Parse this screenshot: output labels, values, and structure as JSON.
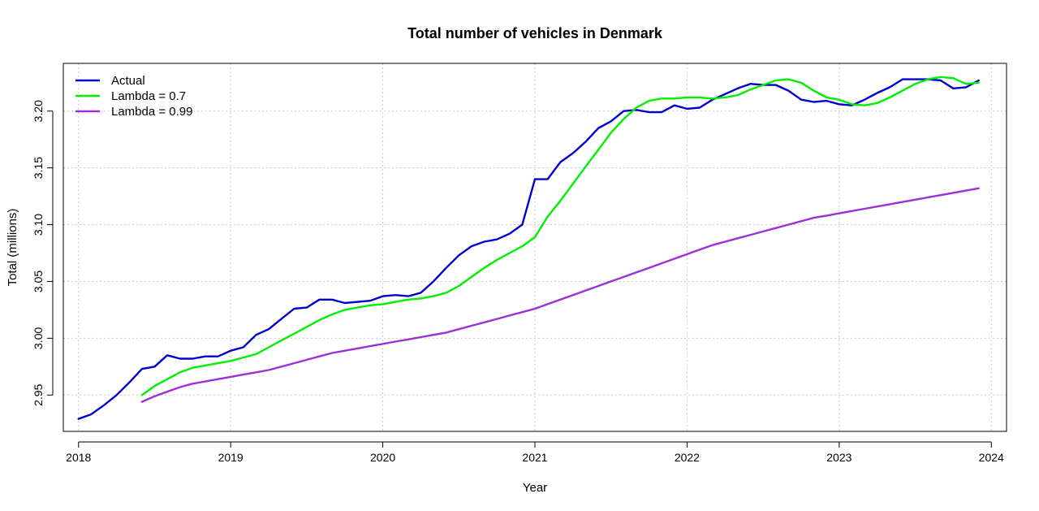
{
  "chart_data": {
    "type": "line",
    "title": "Total number of vehicles in Denmark",
    "xlabel": "Year",
    "ylabel": "Total (millions)",
    "xlim": [
      2017.9,
      2024.1
    ],
    "ylim": [
      2.918,
      3.242
    ],
    "x_ticks": [
      2018,
      2019,
      2020,
      2021,
      2022,
      2023,
      2024
    ],
    "x_tick_labels": [
      "2018",
      "2019",
      "2020",
      "2021",
      "2022",
      "2023",
      "2024"
    ],
    "y_ticks": [
      2.95,
      3.0,
      3.05,
      3.1,
      3.15,
      3.2
    ],
    "y_tick_labels": [
      "2.95",
      "3.00",
      "3.05",
      "3.10",
      "3.15",
      "3.20"
    ],
    "grid": true,
    "legend_position": "top-left",
    "series": [
      {
        "name": "Actual",
        "color": "#0000CD",
        "x": [
          2018.0,
          2018.083,
          2018.167,
          2018.25,
          2018.333,
          2018.417,
          2018.5,
          2018.583,
          2018.667,
          2018.75,
          2018.833,
          2018.917,
          2019.0,
          2019.083,
          2019.167,
          2019.25,
          2019.333,
          2019.417,
          2019.5,
          2019.583,
          2019.667,
          2019.75,
          2019.833,
          2019.917,
          2020.0,
          2020.083,
          2020.167,
          2020.25,
          2020.333,
          2020.417,
          2020.5,
          2020.583,
          2020.667,
          2020.75,
          2020.833,
          2020.917,
          2021.0,
          2021.083,
          2021.167,
          2021.25,
          2021.333,
          2021.417,
          2021.5,
          2021.583,
          2021.667,
          2021.75,
          2021.833,
          2021.917,
          2022.0,
          2022.083,
          2022.167,
          2022.25,
          2022.333,
          2022.417,
          2022.5,
          2022.583,
          2022.667,
          2022.75,
          2022.833,
          2022.917,
          2023.0,
          2023.083,
          2023.167,
          2023.25,
          2023.333,
          2023.417,
          2023.5,
          2023.583,
          2023.667,
          2023.75,
          2023.833,
          2023.917
        ],
        "y": [
          2.929,
          2.933,
          2.941,
          2.95,
          2.961,
          2.973,
          2.975,
          2.985,
          2.982,
          2.982,
          2.984,
          2.984,
          2.989,
          2.992,
          3.003,
          3.008,
          3.017,
          3.026,
          3.027,
          3.034,
          3.034,
          3.031,
          3.032,
          3.033,
          3.037,
          3.038,
          3.037,
          3.04,
          3.05,
          3.062,
          3.073,
          3.081,
          3.085,
          3.087,
          3.092,
          3.1,
          3.14,
          3.14,
          3.155,
          3.163,
          3.173,
          3.185,
          3.191,
          3.2,
          3.201,
          3.199,
          3.199,
          3.205,
          3.202,
          3.203,
          3.21,
          3.215,
          3.22,
          3.224,
          3.223,
          3.223,
          3.218,
          3.21,
          3.208,
          3.209,
          3.206,
          3.205,
          3.21,
          3.216,
          3.221,
          3.228,
          3.228,
          3.228,
          3.227,
          3.22,
          3.221,
          3.227
        ]
      },
      {
        "name": "Lambda = 0.7",
        "color": "#00EE00",
        "x": [
          2018.417,
          2018.5,
          2018.583,
          2018.667,
          2018.75,
          2018.833,
          2018.917,
          2019.0,
          2019.083,
          2019.167,
          2019.25,
          2019.333,
          2019.417,
          2019.5,
          2019.583,
          2019.667,
          2019.75,
          2019.833,
          2019.917,
          2020.0,
          2020.083,
          2020.167,
          2020.25,
          2020.333,
          2020.417,
          2020.5,
          2020.583,
          2020.667,
          2020.75,
          2020.833,
          2020.917,
          2021.0,
          2021.083,
          2021.167,
          2021.25,
          2021.333,
          2021.417,
          2021.5,
          2021.583,
          2021.667,
          2021.75,
          2021.833,
          2021.917,
          2022.0,
          2022.083,
          2022.167,
          2022.25,
          2022.333,
          2022.417,
          2022.5,
          2022.583,
          2022.667,
          2022.75,
          2022.833,
          2022.917,
          2023.0,
          2023.083,
          2023.167,
          2023.25,
          2023.333,
          2023.417,
          2023.5,
          2023.583,
          2023.667,
          2023.75,
          2023.833,
          2023.917
        ],
        "y": [
          2.95,
          2.958,
          2.964,
          2.97,
          2.974,
          2.976,
          2.978,
          2.98,
          2.983,
          2.986,
          2.992,
          2.998,
          3.004,
          3.01,
          3.016,
          3.021,
          3.025,
          3.027,
          3.029,
          3.03,
          3.032,
          3.034,
          3.035,
          3.037,
          3.04,
          3.046,
          3.054,
          3.062,
          3.069,
          3.075,
          3.081,
          3.089,
          3.107,
          3.121,
          3.136,
          3.151,
          3.166,
          3.181,
          3.193,
          3.203,
          3.209,
          3.211,
          3.211,
          3.212,
          3.212,
          3.211,
          3.212,
          3.214,
          3.219,
          3.223,
          3.227,
          3.228,
          3.225,
          3.218,
          3.212,
          3.21,
          3.206,
          3.205,
          3.207,
          3.212,
          3.218,
          3.224,
          3.228,
          3.23,
          3.229,
          3.224,
          3.225
        ]
      },
      {
        "name": "Lambda = 0.99",
        "color": "#9B30D9",
        "x": [
          2018.417,
          2018.5,
          2018.583,
          2018.667,
          2018.75,
          2018.833,
          2018.917,
          2019.0,
          2019.083,
          2019.167,
          2019.25,
          2019.333,
          2019.417,
          2019.5,
          2019.583,
          2019.667,
          2019.75,
          2019.833,
          2019.917,
          2020.0,
          2020.083,
          2020.167,
          2020.25,
          2020.333,
          2020.417,
          2020.5,
          2020.583,
          2020.667,
          2020.75,
          2020.833,
          2020.917,
          2021.0,
          2021.083,
          2021.167,
          2021.25,
          2021.333,
          2021.417,
          2021.5,
          2021.583,
          2021.667,
          2021.75,
          2021.833,
          2021.917,
          2022.0,
          2022.083,
          2022.167,
          2022.25,
          2022.333,
          2022.417,
          2022.5,
          2022.583,
          2022.667,
          2022.75,
          2022.833,
          2022.917,
          2023.0,
          2023.083,
          2023.167,
          2023.25,
          2023.333,
          2023.417,
          2023.5,
          2023.583,
          2023.667,
          2023.75,
          2023.833,
          2023.917
        ],
        "y": [
          2.944,
          2.949,
          2.953,
          2.957,
          2.96,
          2.962,
          2.964,
          2.966,
          2.968,
          2.97,
          2.972,
          2.975,
          2.978,
          2.981,
          2.984,
          2.987,
          2.989,
          2.991,
          2.993,
          2.995,
          2.997,
          2.999,
          3.001,
          3.003,
          3.005,
          3.008,
          3.011,
          3.014,
          3.017,
          3.02,
          3.023,
          3.026,
          3.03,
          3.034,
          3.038,
          3.042,
          3.046,
          3.05,
          3.054,
          3.058,
          3.062,
          3.066,
          3.07,
          3.074,
          3.078,
          3.082,
          3.085,
          3.088,
          3.091,
          3.094,
          3.097,
          3.1,
          3.103,
          3.106,
          3.108,
          3.11,
          3.112,
          3.114,
          3.116,
          3.118,
          3.12,
          3.122,
          3.124,
          3.126,
          3.128,
          3.13,
          3.132
        ]
      }
    ]
  }
}
